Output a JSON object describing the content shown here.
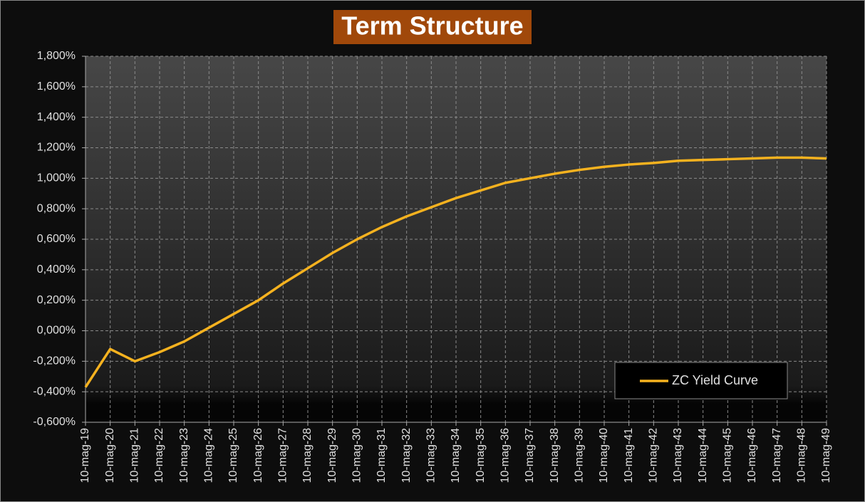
{
  "chart_data": {
    "type": "line",
    "title": "Term Structure",
    "categories": [
      "10-mag-19",
      "10-mag-20",
      "10-mag-21",
      "10-mag-22",
      "10-mag-23",
      "10-mag-24",
      "10-mag-25",
      "10-mag-26",
      "10-mag-27",
      "10-mag-28",
      "10-mag-29",
      "10-mag-30",
      "10-mag-31",
      "10-mag-32",
      "10-mag-33",
      "10-mag-34",
      "10-mag-35",
      "10-mag-36",
      "10-mag-37",
      "10-mag-38",
      "10-mag-39",
      "10-mag-40",
      "10-mag-41",
      "10-mag-42",
      "10-mag-43",
      "10-mag-44",
      "10-mag-45",
      "10-mag-46",
      "10-mag-47",
      "10-mag-48",
      "10-mag-49"
    ],
    "series": [
      {
        "name": "ZC Yield Curve",
        "color": "#f5b21f",
        "values": [
          -0.37,
          -0.12,
          -0.2,
          -0.14,
          -0.07,
          0.02,
          0.11,
          0.2,
          0.31,
          0.41,
          0.51,
          0.6,
          0.68,
          0.75,
          0.81,
          0.87,
          0.92,
          0.97,
          1.0,
          1.03,
          1.055,
          1.075,
          1.09,
          1.1,
          1.115,
          1.12,
          1.125,
          1.13,
          1.135,
          1.135,
          1.13
        ]
      }
    ],
    "ylim": [
      -0.6,
      1.8
    ],
    "yticks": [
      {
        "value": -0.6,
        "label": "-0,600%"
      },
      {
        "value": -0.4,
        "label": "-0,400%"
      },
      {
        "value": -0.2,
        "label": "-0,200%"
      },
      {
        "value": 0,
        "label": "0,000%"
      },
      {
        "value": 0.2,
        "label": "0,200%"
      },
      {
        "value": 0.4,
        "label": "0,400%"
      },
      {
        "value": 0.6,
        "label": "0,600%"
      },
      {
        "value": 0.8,
        "label": "0,800%"
      },
      {
        "value": 1.0,
        "label": "1,000%"
      },
      {
        "value": 1.2,
        "label": "1,200%"
      },
      {
        "value": 1.4,
        "label": "1,400%"
      },
      {
        "value": 1.6,
        "label": "1,600%"
      },
      {
        "value": 1.8,
        "label": "1,800%"
      }
    ],
    "grid": true,
    "legend": "lower right"
  }
}
